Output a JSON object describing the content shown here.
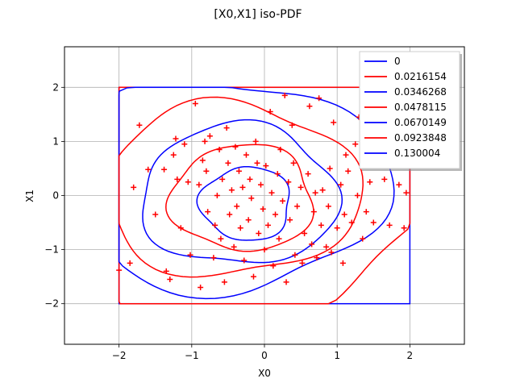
{
  "chart_data": {
    "type": "contour",
    "title": "[X0,X1] iso-PDF",
    "xlabel": "X0",
    "ylabel": "X1",
    "xlim": [
      -2.75,
      2.75
    ],
    "ylim": [
      -2.75,
      2.75
    ],
    "xticks": [
      -2,
      -1,
      0,
      1,
      2
    ],
    "yticks": [
      -2,
      -1,
      0,
      1,
      2
    ],
    "grid": true,
    "legend_position": "top-right",
    "levels": [
      {
        "name": "0",
        "color": "#0000ff"
      },
      {
        "name": "0.0216154",
        "color": "#ff0000"
      },
      {
        "name": "0.0346268",
        "color": "#0000ff"
      },
      {
        "name": "0.0478115",
        "color": "#ff0000"
      },
      {
        "name": "0.0670149",
        "color": "#0000ff"
      },
      {
        "name": "0.0923848",
        "color": "#ff0000"
      },
      {
        "name": "0.130004",
        "color": "#0000ff"
      }
    ],
    "contour_shape": {
      "level_0": {
        "x": [
          -2,
          2
        ],
        "y": [
          -2,
          2
        ]
      },
      "centers": [
        [
          -0.65,
          0.25
        ],
        [
          -0.55,
          0.2
        ],
        [
          -0.45,
          0.1
        ],
        [
          -0.35,
          0.0
        ],
        [
          -0.3,
          -0.05
        ],
        [
          -0.25,
          -0.15
        ]
      ],
      "radii": [
        [
          3.0,
          2.6
        ],
        [
          2.25,
          1.95
        ],
        [
          1.75,
          1.6
        ],
        [
          1.35,
          1.3
        ],
        [
          0.98,
          0.98
        ],
        [
          0.62,
          0.68
        ]
      ]
    },
    "points_marker": "+",
    "points_color": "#ff0000",
    "points": [
      [
        -2.0,
        -1.38
      ],
      [
        -1.85,
        -1.25
      ],
      [
        -1.8,
        0.15
      ],
      [
        -1.72,
        1.3
      ],
      [
        -1.6,
        0.48
      ],
      [
        -1.5,
        -0.35
      ],
      [
        -1.38,
        0.48
      ],
      [
        -1.35,
        -1.4
      ],
      [
        -1.3,
        -1.55
      ],
      [
        -1.25,
        0.75
      ],
      [
        -1.22,
        1.05
      ],
      [
        -1.2,
        0.3
      ],
      [
        -1.15,
        -0.6
      ],
      [
        -1.1,
        0.95
      ],
      [
        -1.05,
        0.25
      ],
      [
        -1.02,
        -1.1
      ],
      [
        -0.95,
        1.7
      ],
      [
        -0.9,
        0.2
      ],
      [
        -0.88,
        -1.7
      ],
      [
        -0.85,
        0.65
      ],
      [
        -0.82,
        1.0
      ],
      [
        -0.8,
        0.45
      ],
      [
        -0.78,
        -0.3
      ],
      [
        -0.75,
        1.1
      ],
      [
        -0.7,
        -1.15
      ],
      [
        -0.68,
        -0.55
      ],
      [
        -0.65,
        0.0
      ],
      [
        -0.62,
        0.85
      ],
      [
        -0.6,
        -0.8
      ],
      [
        -0.58,
        0.3
      ],
      [
        -0.55,
        -1.6
      ],
      [
        -0.52,
        1.25
      ],
      [
        -0.5,
        0.6
      ],
      [
        -0.48,
        -0.35
      ],
      [
        -0.45,
        0.1
      ],
      [
        -0.42,
        -0.95
      ],
      [
        -0.4,
        0.9
      ],
      [
        -0.38,
        -0.2
      ],
      [
        -0.35,
        0.45
      ],
      [
        -0.33,
        -0.6
      ],
      [
        -0.3,
        0.15
      ],
      [
        -0.28,
        -1.2
      ],
      [
        -0.25,
        0.75
      ],
      [
        -0.22,
        -0.45
      ],
      [
        -0.2,
        0.3
      ],
      [
        -0.18,
        -0.05
      ],
      [
        -0.15,
        -1.5
      ],
      [
        -0.12,
        1.0
      ],
      [
        -0.1,
        0.6
      ],
      [
        -0.08,
        -0.7
      ],
      [
        -0.05,
        0.2
      ],
      [
        -0.02,
        -0.25
      ],
      [
        0.0,
        -1.0
      ],
      [
        0.02,
        0.55
      ],
      [
        0.05,
        -0.55
      ],
      [
        0.08,
        1.55
      ],
      [
        0.1,
        0.05
      ],
      [
        0.12,
        -1.3
      ],
      [
        0.15,
        -0.35
      ],
      [
        0.18,
        0.4
      ],
      [
        0.2,
        -0.8
      ],
      [
        0.22,
        0.85
      ],
      [
        0.25,
        -0.1
      ],
      [
        0.28,
        1.85
      ],
      [
        0.3,
        -1.6
      ],
      [
        0.33,
        0.25
      ],
      [
        0.35,
        -0.45
      ],
      [
        0.38,
        1.3
      ],
      [
        0.4,
        0.6
      ],
      [
        0.42,
        -1.1
      ],
      [
        0.45,
        -0.2
      ],
      [
        0.5,
        0.15
      ],
      [
        0.52,
        -1.25
      ],
      [
        0.55,
        -0.7
      ],
      [
        0.6,
        0.4
      ],
      [
        0.62,
        1.65
      ],
      [
        0.65,
        -0.9
      ],
      [
        0.68,
        -0.3
      ],
      [
        0.7,
        0.05
      ],
      [
        0.72,
        -1.15
      ],
      [
        0.75,
        1.8
      ],
      [
        0.78,
        -0.55
      ],
      [
        0.8,
        0.1
      ],
      [
        0.85,
        -0.95
      ],
      [
        0.88,
        -0.2
      ],
      [
        0.9,
        0.5
      ],
      [
        0.92,
        -1.05
      ],
      [
        0.95,
        1.35
      ],
      [
        1.0,
        -0.6
      ],
      [
        1.05,
        0.2
      ],
      [
        1.08,
        -1.25
      ],
      [
        1.1,
        -0.35
      ],
      [
        1.12,
        0.75
      ],
      [
        1.15,
        0.45
      ],
      [
        1.2,
        -0.5
      ],
      [
        1.25,
        0.95
      ],
      [
        1.28,
        0.0
      ],
      [
        1.3,
        1.45
      ],
      [
        1.35,
        -0.8
      ],
      [
        1.38,
        0.55
      ],
      [
        1.4,
        -0.3
      ],
      [
        1.45,
        0.25
      ],
      [
        1.5,
        -0.5
      ],
      [
        1.65,
        0.3
      ],
      [
        1.72,
        -0.55
      ],
      [
        1.85,
        0.2
      ],
      [
        1.92,
        -0.6
      ],
      [
        1.95,
        0.05
      ]
    ]
  }
}
